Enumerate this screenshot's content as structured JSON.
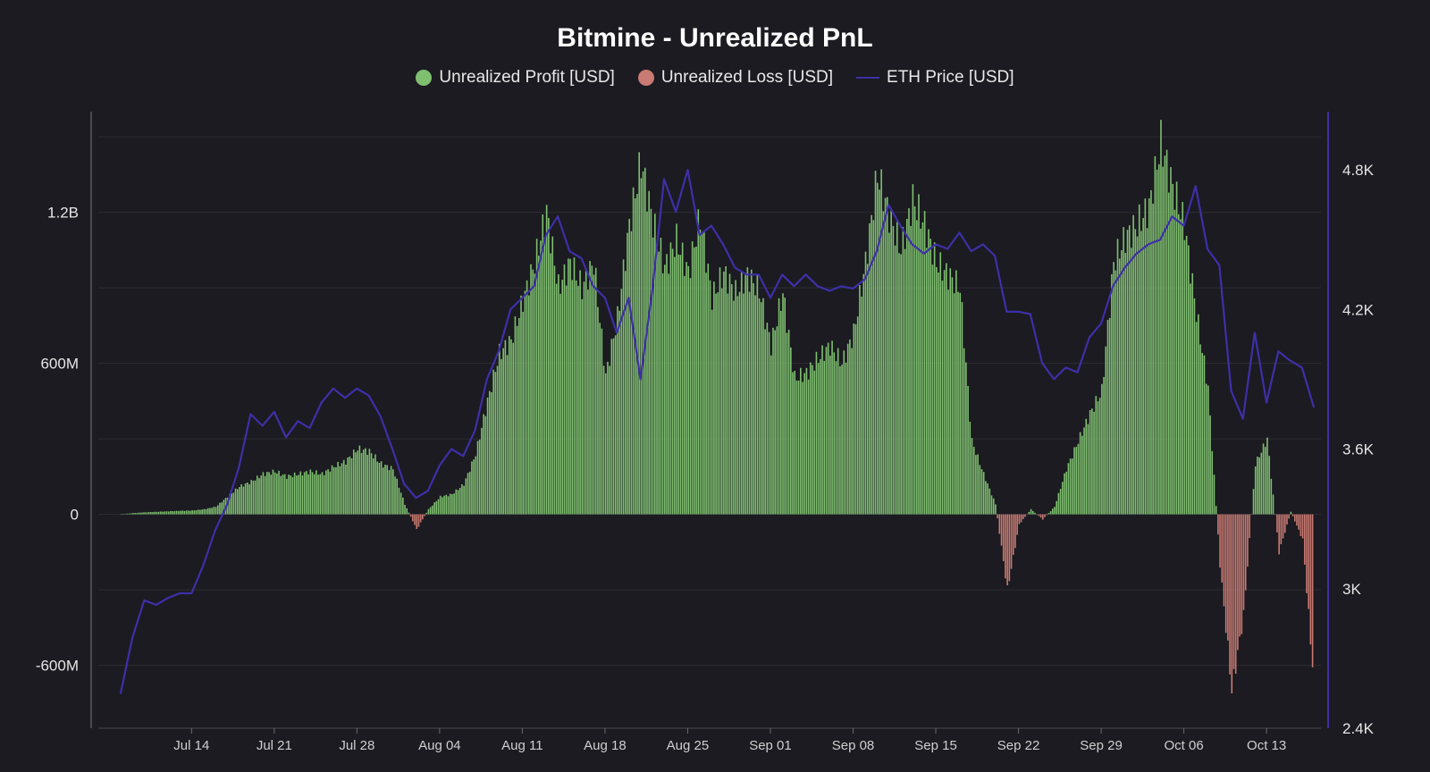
{
  "chart_data": {
    "type": "bar",
    "title": "Bitmine - Unrealized PnL",
    "legend": [
      {
        "name": "Unrealized Profit [USD]",
        "color": "#7fbf70",
        "shape": "dot"
      },
      {
        "name": "Unrealized Loss [USD]",
        "color": "#c97a72",
        "shape": "dot"
      },
      {
        "name": "ETH Price [USD]",
        "color": "#3f2fa8",
        "shape": "line"
      }
    ],
    "legend_position": "top-center",
    "grid": true,
    "y_left": {
      "ticks": [
        "-600M",
        "0",
        "600M",
        "1.2B"
      ],
      "tick_values": [
        -600000000,
        0,
        600000000,
        1200000000
      ],
      "range": [
        -850000000,
        1600000000
      ]
    },
    "y_right": {
      "ticks": [
        "2.4K",
        "3K",
        "3.6K",
        "4.2K",
        "4.8K"
      ],
      "tick_values": [
        2400,
        3000,
        3600,
        4200,
        4800
      ],
      "range": [
        2400,
        5050
      ]
    },
    "x": {
      "ticks": [
        "Jul 14",
        "Jul 21",
        "Jul 28",
        "Aug 04",
        "Aug 11",
        "Aug 18",
        "Aug 25",
        "Sep 01",
        "Sep 08",
        "Sep 15",
        "Sep 22",
        "Sep 29",
        "Oct 06",
        "Oct 13"
      ]
    },
    "series": [
      {
        "name": "Unrealized PnL [USD]",
        "kind": "bar",
        "x": [
          "Jul 08",
          "Jul 09",
          "Jul 10",
          "Jul 11",
          "Jul 12",
          "Jul 13",
          "Jul 14",
          "Jul 15",
          "Jul 16",
          "Jul 17",
          "Jul 18",
          "Jul 19",
          "Jul 20",
          "Jul 21",
          "Jul 22",
          "Jul 23",
          "Jul 24",
          "Jul 25",
          "Jul 26",
          "Jul 27",
          "Jul 28",
          "Jul 29",
          "Jul 30",
          "Jul 31",
          "Aug 01",
          "Aug 02",
          "Aug 03",
          "Aug 04",
          "Aug 05",
          "Aug 06",
          "Aug 07",
          "Aug 08",
          "Aug 09",
          "Aug 10",
          "Aug 11",
          "Aug 12",
          "Aug 13",
          "Aug 14",
          "Aug 15",
          "Aug 16",
          "Aug 17",
          "Aug 18",
          "Aug 19",
          "Aug 20",
          "Aug 21",
          "Aug 22",
          "Aug 23",
          "Aug 24",
          "Aug 25",
          "Aug 26",
          "Aug 27",
          "Aug 28",
          "Aug 29",
          "Aug 30",
          "Aug 31",
          "Sep 01",
          "Sep 02",
          "Sep 03",
          "Sep 04",
          "Sep 05",
          "Sep 06",
          "Sep 07",
          "Sep 08",
          "Sep 09",
          "Sep 10",
          "Sep 11",
          "Sep 12",
          "Sep 13",
          "Sep 14",
          "Sep 15",
          "Sep 16",
          "Sep 17",
          "Sep 18",
          "Sep 19",
          "Sep 20",
          "Sep 21",
          "Sep 22",
          "Sep 23",
          "Sep 24",
          "Sep 25",
          "Sep 26",
          "Sep 27",
          "Sep 28",
          "Sep 29",
          "Sep 30",
          "Oct 01",
          "Oct 02",
          "Oct 03",
          "Oct 04",
          "Oct 05",
          "Oct 06",
          "Oct 07",
          "Oct 08",
          "Oct 09",
          "Oct 10",
          "Oct 11",
          "Oct 12",
          "Oct 13",
          "Oct 14",
          "Oct 15",
          "Oct 16",
          "Oct 17"
        ],
        "values": [
          0,
          5,
          8,
          10,
          12,
          14,
          15,
          20,
          30,
          70,
          110,
          130,
          160,
          170,
          150,
          160,
          170,
          160,
          190,
          210,
          260,
          250,
          200,
          180,
          40,
          -60,
          20,
          70,
          80,
          120,
          240,
          450,
          640,
          690,
          850,
          1000,
          1200,
          900,
          1000,
          900,
          1000,
          550,
          780,
          1150,
          1400,
          1160,
          980,
          1090,
          960,
          1180,
          860,
          960,
          880,
          950,
          890,
          670,
          880,
          540,
          560,
          620,
          670,
          600,
          720,
          1000,
          1350,
          1190,
          1050,
          1250,
          1150,
          1000,
          950,
          900,
          290,
          160,
          40,
          -300,
          -40,
          20,
          -20,
          30,
          180,
          290,
          400,
          490,
          1000,
          1100,
          1150,
          1220,
          1480,
          1300,
          1150,
          800,
          500,
          -200,
          -700,
          -400,
          200,
          300,
          -150,
          10,
          -100,
          -700
        ],
        "positive_color": "#7fbf70",
        "negative_color": "#c97a72"
      },
      {
        "name": "ETH Price [USD]",
        "kind": "line",
        "axis": "right",
        "x": [
          "Jul 08",
          "Jul 09",
          "Jul 10",
          "Jul 11",
          "Jul 12",
          "Jul 13",
          "Jul 14",
          "Jul 15",
          "Jul 16",
          "Jul 17",
          "Jul 18",
          "Jul 19",
          "Jul 20",
          "Jul 21",
          "Jul 22",
          "Jul 23",
          "Jul 24",
          "Jul 25",
          "Jul 26",
          "Jul 27",
          "Jul 28",
          "Jul 29",
          "Jul 30",
          "Jul 31",
          "Aug 01",
          "Aug 02",
          "Aug 03",
          "Aug 04",
          "Aug 05",
          "Aug 06",
          "Aug 07",
          "Aug 08",
          "Aug 09",
          "Aug 10",
          "Aug 11",
          "Aug 12",
          "Aug 13",
          "Aug 14",
          "Aug 15",
          "Aug 16",
          "Aug 17",
          "Aug 18",
          "Aug 19",
          "Aug 20",
          "Aug 21",
          "Aug 22",
          "Aug 23",
          "Aug 24",
          "Aug 25",
          "Aug 26",
          "Aug 27",
          "Aug 28",
          "Aug 29",
          "Aug 30",
          "Aug 31",
          "Sep 01",
          "Sep 02",
          "Sep 03",
          "Sep 04",
          "Sep 05",
          "Sep 06",
          "Sep 07",
          "Sep 08",
          "Sep 09",
          "Sep 10",
          "Sep 11",
          "Sep 12",
          "Sep 13",
          "Sep 14",
          "Sep 15",
          "Sep 16",
          "Sep 17",
          "Sep 18",
          "Sep 19",
          "Sep 20",
          "Sep 21",
          "Sep 22",
          "Sep 23",
          "Sep 24",
          "Sep 25",
          "Sep 26",
          "Sep 27",
          "Sep 28",
          "Sep 29",
          "Sep 30",
          "Oct 01",
          "Oct 02",
          "Oct 03",
          "Oct 04",
          "Oct 05",
          "Oct 06",
          "Oct 07",
          "Oct 08",
          "Oct 09",
          "Oct 10",
          "Oct 11",
          "Oct 12",
          "Oct 13",
          "Oct 14",
          "Oct 15",
          "Oct 16",
          "Oct 17"
        ],
        "values": [
          2550,
          2790,
          2950,
          2930,
          2960,
          2980,
          2980,
          3100,
          3250,
          3360,
          3520,
          3750,
          3700,
          3760,
          3650,
          3720,
          3690,
          3800,
          3860,
          3820,
          3860,
          3830,
          3740,
          3600,
          3450,
          3390,
          3420,
          3530,
          3600,
          3570,
          3680,
          3900,
          4020,
          4200,
          4250,
          4300,
          4520,
          4600,
          4450,
          4420,
          4300,
          4250,
          4100,
          4250,
          3900,
          4280,
          4760,
          4620,
          4800,
          4520,
          4560,
          4480,
          4380,
          4350,
          4350,
          4250,
          4350,
          4300,
          4350,
          4300,
          4280,
          4300,
          4290,
          4330,
          4450,
          4650,
          4560,
          4480,
          4440,
          4480,
          4460,
          4530,
          4450,
          4480,
          4430,
          4190,
          4190,
          4180,
          3970,
          3900,
          3950,
          3930,
          4080,
          4140,
          4300,
          4380,
          4440,
          4480,
          4500,
          4600,
          4560,
          4730,
          4460,
          4390,
          3850,
          3730,
          4100,
          3800,
          4020,
          3980,
          3950,
          3780
        ],
        "color": "#3f2fa8"
      }
    ]
  }
}
